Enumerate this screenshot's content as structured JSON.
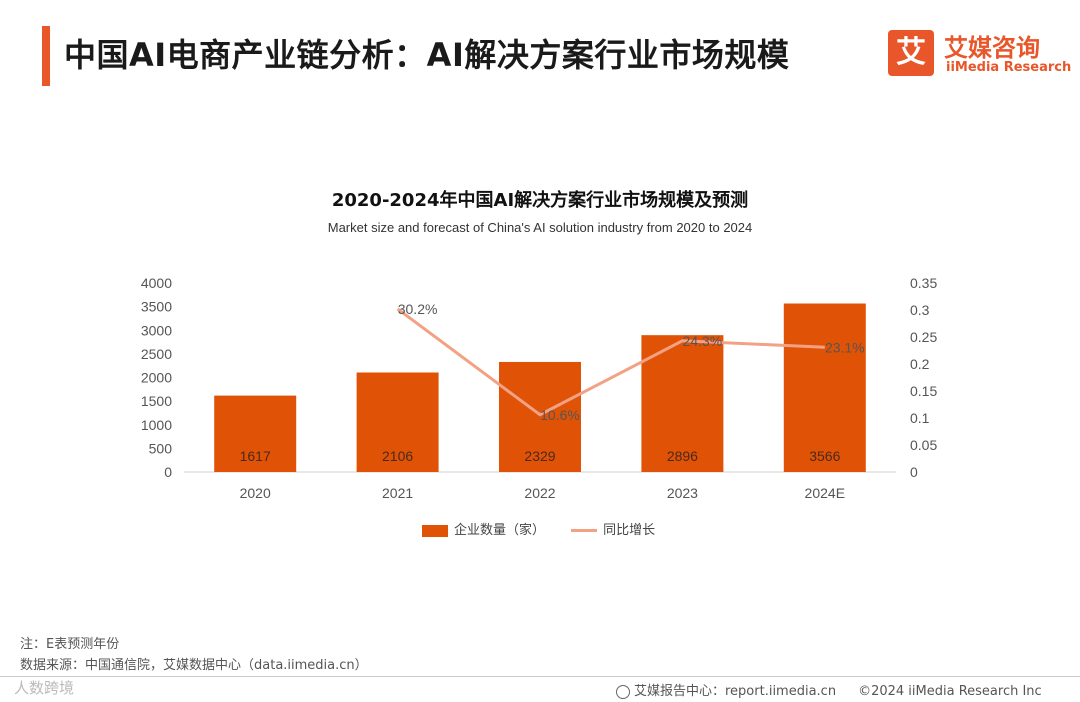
{
  "page": {
    "title": "中国AI电商产业链分析：AI解决方案行业市场规模",
    "brand_color": "#e8562a"
  },
  "logo": {
    "glyph": "艾",
    "cn": "艾媒咨询",
    "en": "iiMedia Research"
  },
  "chart_data": {
    "type": "bar",
    "title": "2020-2024年中国AI解决方案行业市场规模及预测",
    "subtitle": "Market size and forecast of China's AI solution industry from 2020 to 2024",
    "categories": [
      "2020",
      "2021",
      "2022",
      "2023",
      "2024E"
    ],
    "series": [
      {
        "name": "企业数量（家）",
        "type": "bar",
        "axis": "left",
        "color": "#e05306",
        "values": [
          1617,
          2106,
          2329,
          2896,
          3566
        ],
        "labels": [
          "1617",
          "2106",
          "2329",
          "2896",
          "3566"
        ]
      },
      {
        "name": "同比增长",
        "type": "line",
        "axis": "right",
        "color": "#f3a184",
        "values": [
          null,
          0.302,
          0.106,
          0.243,
          0.231
        ],
        "labels": [
          null,
          "30.2%",
          "10.6%",
          "24.3%",
          "23.1%"
        ]
      }
    ],
    "y_left": {
      "min": 0,
      "max": 4000,
      "ticks": [
        "0",
        "500",
        "1000",
        "1500",
        "2000",
        "2500",
        "3000",
        "3500",
        "4000"
      ]
    },
    "y_right": {
      "min": 0,
      "max": 0.35,
      "ticks": [
        "0",
        "0.05",
        "0.1",
        "0.15",
        "0.2",
        "0.25",
        "0.3",
        "0.35"
      ]
    },
    "grid": false,
    "legend_position": "bottom"
  },
  "notes": {
    "note": "注：E表预测年份",
    "source": "数据来源：中国通信院，艾媒数据中心（data.iimedia.cn）"
  },
  "footer": {
    "watermark": "人数跨境",
    "report": "艾媒报告中心：report.iimedia.cn",
    "copyright": "©2024  iiMedia Research  Inc"
  }
}
